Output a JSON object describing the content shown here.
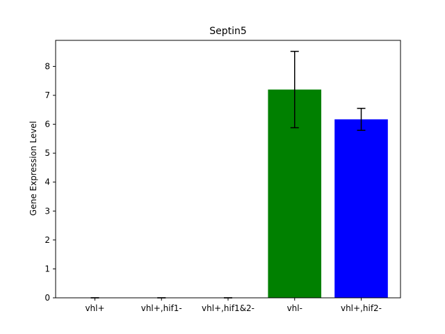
{
  "chart_data": {
    "type": "bar",
    "title": "Septin5",
    "xlabel": "",
    "ylabel": "Gene Expression Level",
    "categories": [
      "vhl+",
      "vhl+,hif1-",
      "vhl+,hif1&2-",
      "vhl-",
      "vhl+,hif2-"
    ],
    "values": [
      0.0,
      0.0,
      0.0,
      7.2,
      6.17
    ],
    "errors": [
      0.0,
      0.0,
      0.0,
      1.32,
      0.38
    ],
    "colors": [
      "#ff0000",
      "#ffa500",
      "#800080",
      "#008000",
      "#0000ff"
    ],
    "ylim": [
      0,
      8.9
    ],
    "yticks": [
      0,
      1,
      2,
      3,
      4,
      5,
      6,
      7,
      8
    ],
    "grid": false,
    "legend": "none"
  }
}
